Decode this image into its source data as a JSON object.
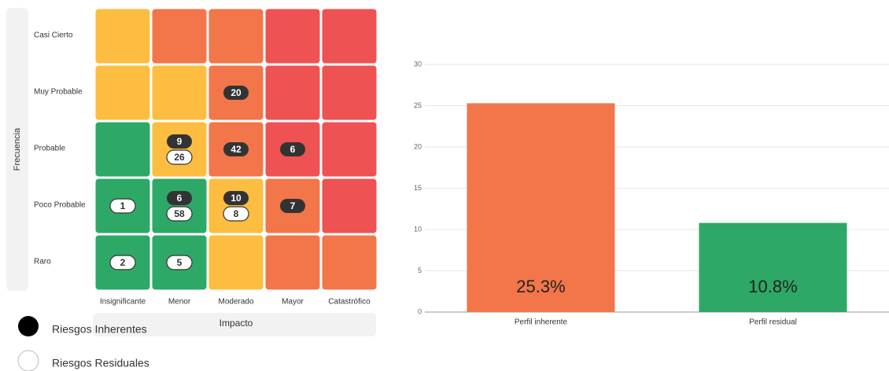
{
  "risk_matrix": {
    "y_label": "Frecuencia",
    "x_label": "Impacto",
    "rows": [
      "Casi Cierto",
      "Muy Probable",
      "Probable",
      "Poco Probable",
      "Raro"
    ],
    "columns": [
      "Insignificante",
      "Menor",
      "Moderado",
      "Mayor",
      "Catastrófico"
    ],
    "cells": [
      [
        {
          "color": "#fdbd40"
        },
        {
          "color": "#f2764a"
        },
        {
          "color": "#f2764a"
        },
        {
          "color": "#ee5253"
        },
        {
          "color": "#ee5253"
        }
      ],
      [
        {
          "color": "#fdbd40"
        },
        {
          "color": "#fdbd40"
        },
        {
          "color": "#f2764a",
          "inherent": 20
        },
        {
          "color": "#ee5253"
        },
        {
          "color": "#ee5253"
        }
      ],
      [
        {
          "color": "#2ea866"
        },
        {
          "color": "#fdbd40",
          "inherent": 9,
          "residual": 26
        },
        {
          "color": "#f2764a",
          "inherent": 42
        },
        {
          "color": "#ee5253",
          "inherent": 6
        },
        {
          "color": "#ee5253"
        }
      ],
      [
        {
          "color": "#2ea866",
          "residual": 1
        },
        {
          "color": "#2ea866",
          "inherent": 6,
          "residual": 58
        },
        {
          "color": "#fdbd40",
          "inherent": 10,
          "residual": 8
        },
        {
          "color": "#f2764a",
          "inherent": 7
        },
        {
          "color": "#ee5253"
        }
      ],
      [
        {
          "color": "#2ea866",
          "residual": 2
        },
        {
          "color": "#2ea866",
          "residual": 5
        },
        {
          "color": "#fdbd40"
        },
        {
          "color": "#f2764a"
        },
        {
          "color": "#f2764a"
        }
      ]
    ],
    "legend": [
      "Riesgos Inherentes",
      "Riesgos Residuales"
    ]
  },
  "chart_data": {
    "type": "bar",
    "categories": [
      "Perfil inherente",
      "Perfil residual"
    ],
    "values": [
      25.3,
      10.8
    ],
    "value_labels": [
      "25.3%",
      "10.8%"
    ],
    "colors": [
      "#f2764a",
      "#2ea866"
    ],
    "ylim": [
      0,
      30
    ],
    "yticks": [
      0,
      5,
      10,
      15,
      20,
      25,
      30
    ],
    "grid": true
  }
}
